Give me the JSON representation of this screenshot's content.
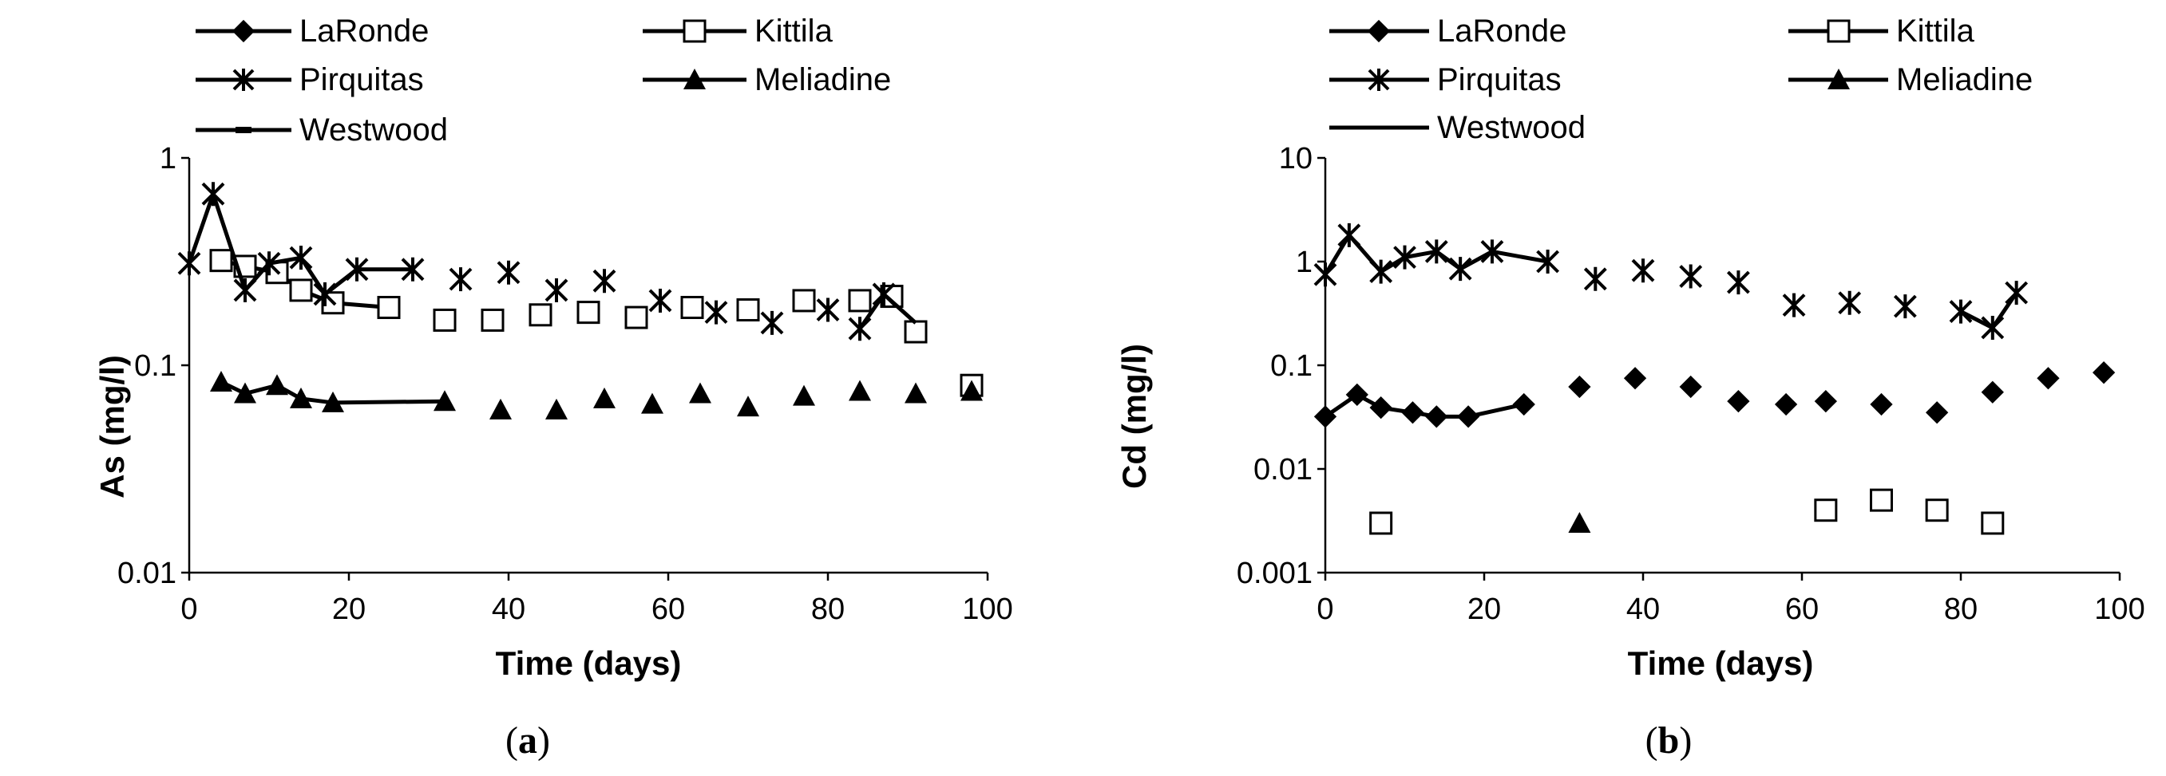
{
  "chart_data": [
    {
      "type": "scatter",
      "panel_label_prefix": "(",
      "panel_label_letter": "a",
      "panel_label_suffix": ")",
      "xlabel": "Time (days)",
      "ylabel": "As (mg/l)",
      "xlim": [
        0,
        100
      ],
      "ylim": [
        0.01,
        1
      ],
      "yscale": "log",
      "x_ticks": [
        "0",
        "20",
        "40",
        "60",
        "80",
        "100"
      ],
      "y_ticks": [
        "0.01",
        "0.1",
        "1"
      ],
      "legend": [
        "LaRonde",
        "Kittila",
        "Pirquitas",
        "Meliadine",
        "Westwood"
      ],
      "series": [
        {
          "name": "LaRonde",
          "marker": "diamond",
          "x": [],
          "y": [],
          "connect_upto": 0
        },
        {
          "name": "Kittila",
          "marker": "square",
          "x": [
            4,
            7,
            11,
            14,
            18,
            25,
            32,
            38,
            44,
            50,
            56,
            63,
            70,
            77,
            84,
            88,
            91,
            98
          ],
          "y": [
            0.32,
            0.3,
            0.28,
            0.23,
            0.2,
            0.19,
            0.165,
            0.165,
            0.175,
            0.18,
            0.17,
            0.19,
            0.185,
            0.205,
            0.205,
            0.215,
            0.145,
            0.08
          ],
          "connect_upto": 5
        },
        {
          "name": "Pirquitas",
          "marker": "star",
          "x": [
            0,
            3,
            7,
            10,
            14,
            17,
            21,
            28,
            34,
            40,
            46,
            52,
            59,
            66,
            73,
            80,
            84,
            87
          ],
          "y": [
            0.31,
            0.67,
            0.23,
            0.31,
            0.33,
            0.22,
            0.29,
            0.29,
            0.26,
            0.28,
            0.23,
            0.255,
            0.205,
            0.18,
            0.16,
            0.185,
            0.15,
            0.22
          ],
          "connect_upto": 7
        },
        {
          "name": "Meliadine",
          "marker": "triangle",
          "x": [
            4,
            7,
            11,
            14,
            18,
            32,
            39,
            46,
            52,
            58,
            64,
            70,
            77,
            84,
            91,
            98
          ],
          "y": [
            0.083,
            0.073,
            0.08,
            0.069,
            0.066,
            0.067,
            0.061,
            0.061,
            0.069,
            0.065,
            0.073,
            0.063,
            0.071,
            0.075,
            0.073,
            0.075
          ],
          "connect_upto": 5
        },
        {
          "name": "Westwood",
          "marker": "dash",
          "x": [],
          "y": [],
          "connect_upto": 0
        }
      ],
      "pirquitas_tail_x": [
        84,
        87,
        91
      ],
      "pirquitas_tail_y": [
        0.15,
        0.22,
        0.16
      ]
    },
    {
      "type": "scatter",
      "panel_label_prefix": "(",
      "panel_label_letter": "b",
      "panel_label_suffix": ")",
      "xlabel": "Time (days)",
      "ylabel": "Cd (mg/l)",
      "xlim": [
        0,
        100
      ],
      "ylim": [
        0.001,
        10
      ],
      "yscale": "log",
      "x_ticks": [
        "0",
        "20",
        "40",
        "60",
        "80",
        "100"
      ],
      "y_ticks": [
        "0.001",
        "0.01",
        "0.1",
        "1",
        "10"
      ],
      "legend": [
        "LaRonde",
        "Kittila",
        "Pirquitas",
        "Meliadine",
        "Westwood"
      ],
      "series": [
        {
          "name": "LaRonde",
          "marker": "diamond",
          "x": [
            0,
            4,
            7,
            11,
            14,
            18,
            25,
            32,
            39,
            46,
            52,
            58,
            63,
            70,
            77,
            84,
            91,
            98
          ],
          "y": [
            0.032,
            0.052,
            0.039,
            0.035,
            0.032,
            0.032,
            0.042,
            0.062,
            0.075,
            0.062,
            0.045,
            0.042,
            0.045,
            0.042,
            0.035,
            0.055,
            0.075,
            0.085
          ],
          "connect_upto": 6
        },
        {
          "name": "Kittila",
          "marker": "square",
          "x": [
            7,
            63,
            70,
            77,
            84
          ],
          "y": [
            0.003,
            0.004,
            0.005,
            0.004,
            0.003
          ],
          "connect_upto": 0
        },
        {
          "name": "Pirquitas",
          "marker": "star",
          "x": [
            0,
            3,
            7,
            10,
            14,
            17,
            21,
            28,
            34,
            40,
            46,
            52,
            59,
            66,
            73,
            80,
            84,
            87
          ],
          "y": [
            0.75,
            1.8,
            0.8,
            1.1,
            1.25,
            0.85,
            1.25,
            1.0,
            0.68,
            0.82,
            0.72,
            0.63,
            0.38,
            0.4,
            0.37,
            0.33,
            0.23,
            0.5
          ],
          "connect_upto": 7
        },
        {
          "name": "Meliadine",
          "marker": "triangle",
          "x": [
            32
          ],
          "y": [
            0.003
          ],
          "connect_upto": 0
        },
        {
          "name": "Westwood",
          "marker": "dash",
          "x": [],
          "y": [],
          "connect_upto": 0
        }
      ],
      "pirquitas_tail_x": [
        80,
        84,
        87
      ],
      "pirquitas_tail_y": [
        0.33,
        0.23,
        0.5
      ]
    }
  ]
}
